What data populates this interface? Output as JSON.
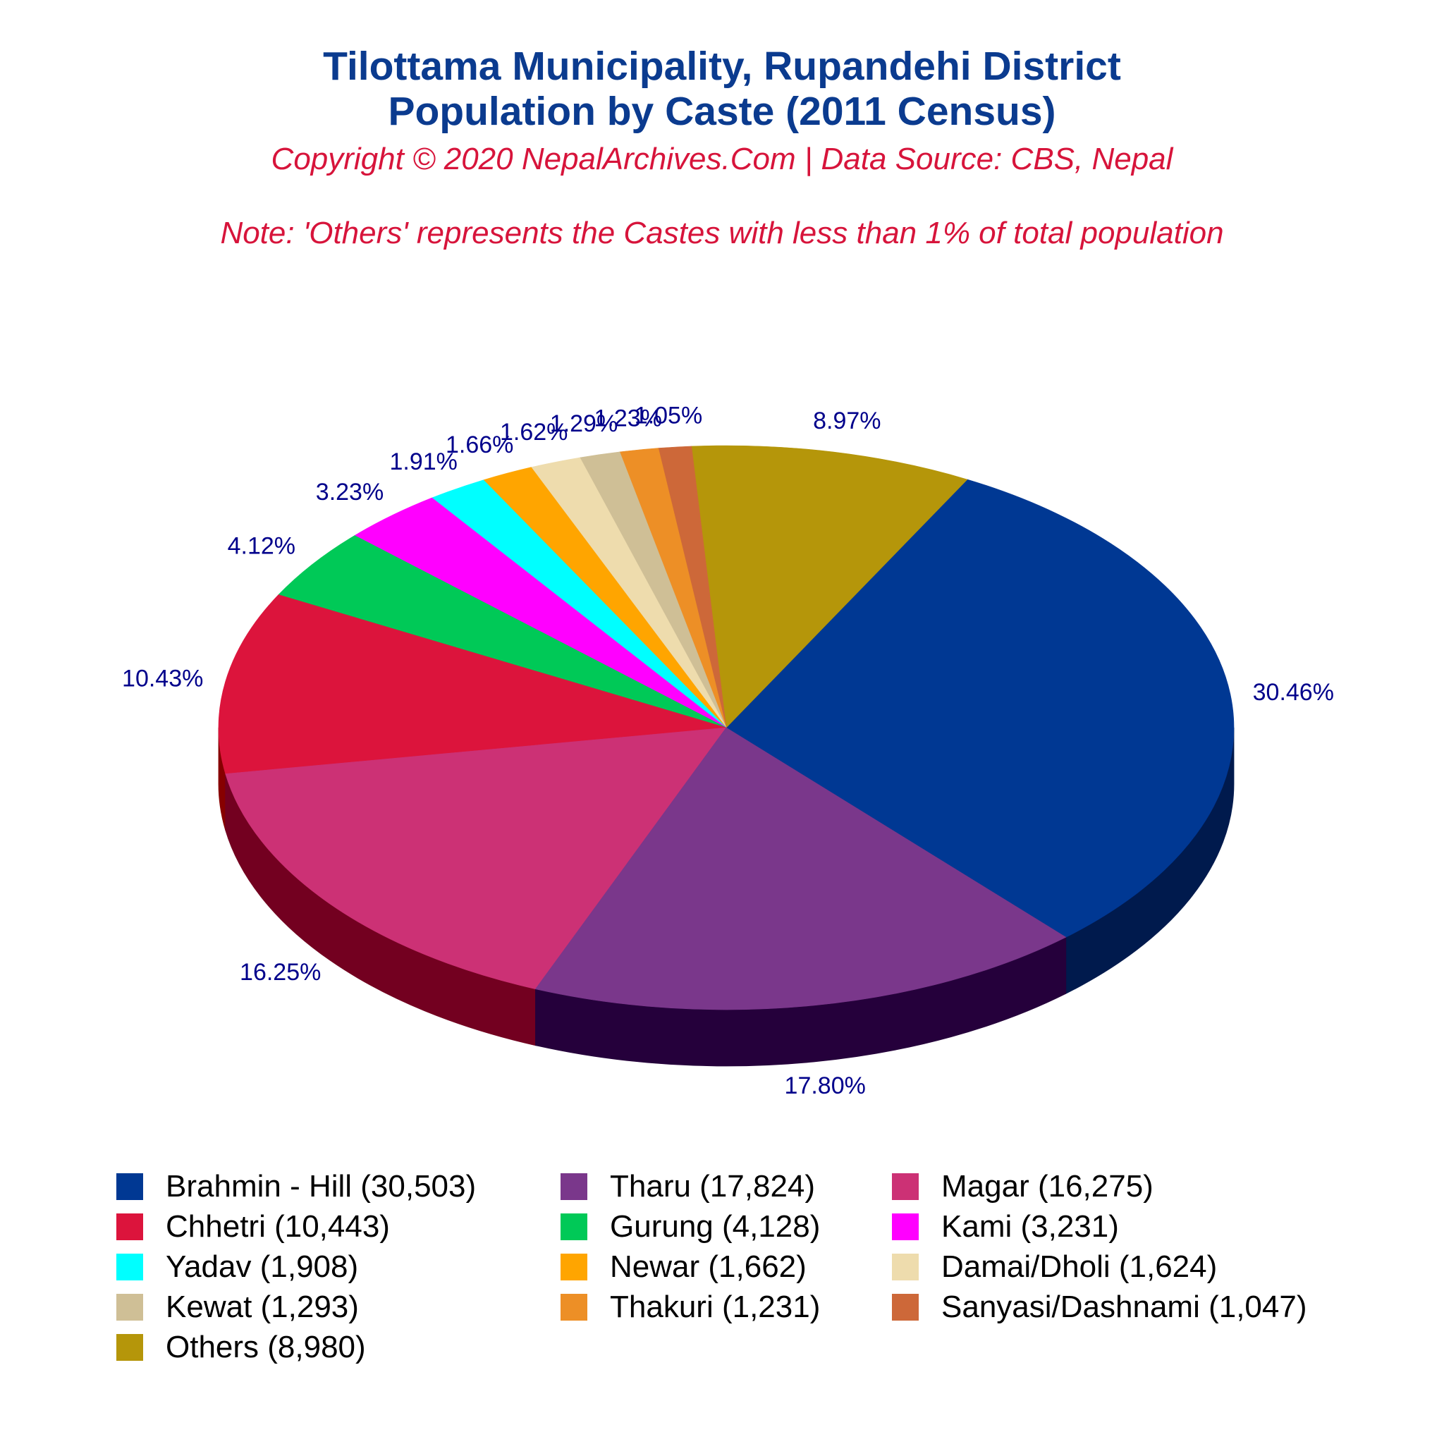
{
  "header": {
    "title_line1": "Tilottama Municipality, Rupandehi District",
    "title_line2": "Population by Caste (2011 Census)",
    "copyright": "Copyright © 2020 NepalArchives.Com | Data Source: CBS, Nepal",
    "note": "Note: 'Others' represents the Castes with less than 1% of total population"
  },
  "colors": {
    "title": "#0b3b8f",
    "subtitle": "#d7143b",
    "pct_label": "#00008b"
  },
  "chart_data": {
    "type": "pie",
    "title": "Tilottama Municipality, Rupandehi District Population by Caste (2011 Census)",
    "legend_placement": "bottom",
    "slices": [
      {
        "name": "Brahmin - Hill",
        "value": 30503,
        "percent": "30.46%",
        "legend": "Brahmin - Hill (30,503)",
        "color": "#003893",
        "side_color": "#001a4d"
      },
      {
        "name": "Others",
        "value": 8980,
        "percent": "8.97%",
        "legend": "Others (8,980)",
        "color": "#b5960a",
        "side_color": "#6b5a06"
      },
      {
        "name": "Sanyasi/Dashnami",
        "value": 1047,
        "percent": "1.05%",
        "legend": "Sanyasi/Dashnami (1,047)",
        "color": "#cd6839",
        "side_color": "#7a3d1f"
      },
      {
        "name": "Thakuri",
        "value": 1231,
        "percent": "1.23%",
        "legend": "Thakuri (1,231)",
        "color": "#ed8f26",
        "side_color": "#8e5616"
      },
      {
        "name": "Kewat",
        "value": 1293,
        "percent": "1.29%",
        "legend": "Kewat (1,293)",
        "color": "#cfbf96",
        "side_color": "#8b7e5c"
      },
      {
        "name": "Damai/Dholi",
        "value": 1624,
        "percent": "1.62%",
        "legend": "Damai/Dholi (1,624)",
        "color": "#eedcad",
        "side_color": "#a38f63"
      },
      {
        "name": "Newar",
        "value": 1662,
        "percent": "1.66%",
        "legend": "Newar (1,662)",
        "color": "#ffa500",
        "side_color": "#b35900"
      },
      {
        "name": "Yadav",
        "value": 1908,
        "percent": "1.91%",
        "legend": "Yadav (1,908)",
        "color": "#00ffff",
        "side_color": "#00a5a5"
      },
      {
        "name": "Kami",
        "value": 3231,
        "percent": "3.23%",
        "legend": "Kami (3,231)",
        "color": "#ff00ff",
        "side_color": "#ad00ad"
      },
      {
        "name": "Gurung",
        "value": 4128,
        "percent": "4.12%",
        "legend": "Gurung (4,128)",
        "color": "#00c957",
        "side_color": "#006e00"
      },
      {
        "name": "Chhetri",
        "value": 10443,
        "percent": "10.43%",
        "legend": "Chhetri (10,443)",
        "color": "#dc143c",
        "side_color": "#870000"
      },
      {
        "name": "Magar",
        "value": 16275,
        "percent": "16.25%",
        "legend": "Magar (16,275)",
        "color": "#cc3175",
        "side_color": "#730020"
      },
      {
        "name": "Tharu",
        "value": 17824,
        "percent": "17.80%",
        "legend": "Tharu (17,824)",
        "color": "#7a378b",
        "side_color": "#25003b"
      }
    ],
    "legend_order": [
      "Brahmin - Hill",
      "Tharu",
      "Magar",
      "Chhetri",
      "Gurung",
      "Kami",
      "Yadav",
      "Newar",
      "Damai/Dholi",
      "Kewat",
      "Thakuri",
      "Sanyasi/Dashnami",
      "Others"
    ]
  }
}
